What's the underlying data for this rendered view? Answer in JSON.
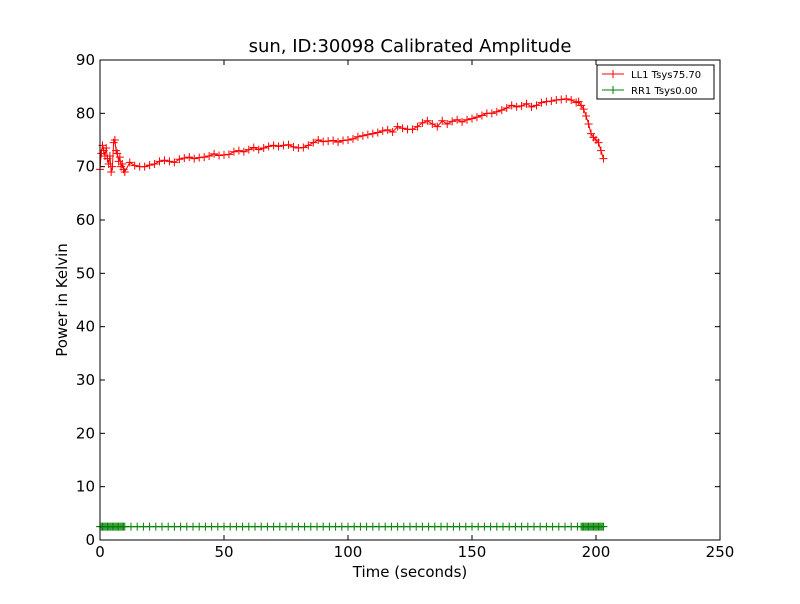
{
  "chart_data": {
    "type": "line",
    "title": "sun, ID:30098 Calibrated Amplitude",
    "xlabel": "Time (seconds)",
    "ylabel": "Power in Kelvin",
    "xlim": [
      0,
      250
    ],
    "ylim": [
      0,
      90
    ],
    "x_ticks": [
      0,
      50,
      100,
      150,
      200,
      250
    ],
    "y_ticks": [
      0,
      10,
      20,
      30,
      40,
      50,
      60,
      70,
      80,
      90
    ],
    "grid": false,
    "legend_position": "top-right",
    "marker": "+",
    "series": [
      {
        "name": "LL1 Tsys75.70",
        "color": "#ff0000",
        "x": [
          0,
          0.5,
          1,
          1.5,
          2,
          2.5,
          3,
          3.5,
          4,
          4.5,
          5,
          5.5,
          6,
          6.5,
          7,
          7.5,
          8,
          8.5,
          9,
          9.5,
          10,
          12,
          14,
          16,
          18,
          20,
          22,
          24,
          26,
          28,
          30,
          32,
          34,
          36,
          38,
          40,
          42,
          44,
          46,
          48,
          50,
          52,
          54,
          56,
          58,
          60,
          62,
          64,
          66,
          68,
          70,
          72,
          74,
          76,
          78,
          80,
          82,
          84,
          86,
          88,
          90,
          92,
          94,
          96,
          98,
          100,
          102,
          104,
          106,
          108,
          110,
          112,
          114,
          116,
          118,
          120,
          122,
          124,
          126,
          128,
          130,
          132,
          134,
          136,
          138,
          140,
          142,
          144,
          146,
          148,
          150,
          152,
          154,
          156,
          158,
          160,
          162,
          164,
          166,
          168,
          170,
          172,
          174,
          176,
          178,
          180,
          182,
          184,
          186,
          188,
          190,
          192,
          193,
          194,
          195,
          196,
          197,
          198,
          199,
          200,
          201,
          202,
          203
        ],
        "y": [
          69.5,
          72.5,
          74.0,
          73.0,
          72.0,
          73.5,
          71.5,
          70.5,
          72.0,
          69.0,
          70.0,
          74.5,
          75.0,
          73.0,
          72.5,
          71.0,
          71.8,
          70.0,
          70.5,
          69.5,
          69.0,
          70.8,
          70.2,
          70.0,
          70.0,
          70.3,
          70.5,
          71.0,
          71.2,
          71.0,
          70.8,
          71.4,
          71.6,
          71.8,
          71.5,
          71.7,
          71.8,
          72.0,
          72.4,
          72.1,
          72.2,
          72.3,
          72.8,
          73.0,
          72.8,
          73.2,
          73.6,
          73.2,
          73.5,
          73.8,
          74.0,
          73.8,
          74.0,
          74.1,
          73.7,
          73.5,
          73.6,
          74.0,
          74.5,
          75.0,
          74.7,
          74.8,
          74.9,
          74.6,
          74.9,
          75.0,
          75.2,
          75.6,
          75.8,
          76.0,
          76.2,
          76.4,
          76.7,
          76.9,
          76.5,
          77.5,
          77.2,
          77.0,
          77.0,
          77.5,
          78.2,
          78.6,
          78.0,
          77.5,
          78.6,
          78.0,
          78.5,
          78.8,
          78.4,
          78.8,
          79.0,
          79.3,
          79.6,
          80.0,
          80.0,
          80.3,
          80.6,
          81.0,
          81.5,
          81.2,
          81.4,
          81.8,
          81.2,
          81.5,
          82.0,
          82.2,
          82.3,
          82.5,
          82.6,
          82.7,
          82.5,
          82.0,
          82.2,
          81.5,
          80.8,
          79.5,
          78.0,
          76.2,
          75.5,
          75.0,
          74.5,
          73.0,
          71.5
        ]
      },
      {
        "name": "RR1 Tsys0.00",
        "color": "#008000",
        "x": [
          0,
          0.5,
          1,
          1.5,
          2,
          2.5,
          3,
          3.5,
          4,
          4.5,
          5,
          5.5,
          6,
          6.5,
          7,
          7.5,
          8,
          8.5,
          9,
          9.5,
          10,
          12.5,
          15,
          17.5,
          20,
          22.5,
          25,
          27.5,
          30,
          32.5,
          35,
          37.5,
          40,
          42.5,
          45,
          47.5,
          50,
          52.5,
          55,
          57.5,
          60,
          62.5,
          65,
          67.5,
          70,
          72.5,
          75,
          77.5,
          80,
          82.5,
          85,
          87.5,
          90,
          92.5,
          95,
          97.5,
          100,
          102.5,
          105,
          107.5,
          110,
          112.5,
          115,
          117.5,
          120,
          122.5,
          125,
          127.5,
          130,
          132.5,
          135,
          137.5,
          140,
          142.5,
          145,
          147.5,
          150,
          152.5,
          155,
          157.5,
          160,
          162.5,
          165,
          167.5,
          170,
          172.5,
          175,
          177.5,
          180,
          182.5,
          185,
          187.5,
          190,
          192.5,
          194,
          194.5,
          195,
          195.5,
          196,
          196.5,
          197,
          197.5,
          198,
          198.5,
          199,
          199.5,
          200,
          200.5,
          201,
          201.5,
          202,
          202.5,
          203
        ],
        "y": [
          2.5,
          2.5,
          2.5,
          2.5,
          2.5,
          2.5,
          2.5,
          2.5,
          2.5,
          2.5,
          2.5,
          2.5,
          2.5,
          2.5,
          2.5,
          2.5,
          2.5,
          2.5,
          2.5,
          2.5,
          2.5,
          2.5,
          2.5,
          2.5,
          2.5,
          2.5,
          2.5,
          2.5,
          2.5,
          2.5,
          2.5,
          2.5,
          2.5,
          2.5,
          2.5,
          2.5,
          2.5,
          2.5,
          2.5,
          2.5,
          2.5,
          2.5,
          2.5,
          2.5,
          2.5,
          2.5,
          2.5,
          2.5,
          2.5,
          2.5,
          2.5,
          2.5,
          2.5,
          2.5,
          2.5,
          2.5,
          2.5,
          2.5,
          2.5,
          2.5,
          2.5,
          2.5,
          2.5,
          2.5,
          2.5,
          2.5,
          2.5,
          2.5,
          2.5,
          2.5,
          2.5,
          2.5,
          2.5,
          2.5,
          2.5,
          2.5,
          2.5,
          2.5,
          2.5,
          2.5,
          2.5,
          2.5,
          2.5,
          2.5,
          2.5,
          2.5,
          2.5,
          2.5,
          2.5,
          2.5,
          2.5,
          2.5,
          2.5,
          2.5,
          2.5,
          2.5,
          2.5,
          2.5,
          2.5,
          2.5,
          2.5,
          2.5,
          2.5,
          2.5,
          2.5,
          2.5,
          2.5,
          2.5,
          2.5,
          2.5,
          2.5,
          2.5,
          2.5
        ]
      }
    ]
  }
}
